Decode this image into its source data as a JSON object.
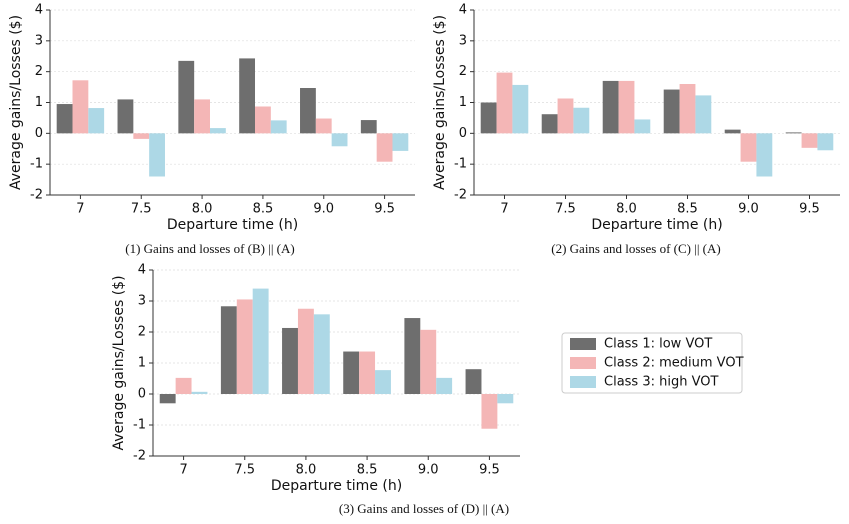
{
  "chart_data": [
    {
      "type": "bar",
      "caption": "(1) Gains and losses of (B) || (A)",
      "xlabel": "Departure time (h)",
      "ylabel": "Average gains/Losses ($)",
      "categories": [
        "7",
        "7.5",
        "8.0",
        "8.5",
        "9.0",
        "9.5"
      ],
      "series": [
        {
          "color": "#6e6e6e",
          "values": [
            0.95,
            1.1,
            2.35,
            2.43,
            1.47,
            0.43
          ]
        },
        {
          "color": "#f4b6b6",
          "values": [
            1.72,
            -0.18,
            1.1,
            0.87,
            0.48,
            -0.92
          ]
        },
        {
          "color": "#add8e6",
          "values": [
            0.82,
            -1.4,
            0.17,
            0.42,
            -0.42,
            -0.57
          ]
        }
      ],
      "ylim": [
        -2,
        4
      ],
      "yticks": [
        -2,
        -1,
        0,
        1,
        2,
        3,
        4
      ],
      "grid": true
    },
    {
      "type": "bar",
      "caption": "(2) Gains and losses of (C) || (A)",
      "xlabel": "Departure time (h)",
      "ylabel": "Average gains/Losses ($)",
      "categories": [
        "7",
        "7.5",
        "8.0",
        "8.5",
        "9.0",
        "9.5"
      ],
      "series": [
        {
          "color": "#6e6e6e",
          "values": [
            1.0,
            0.62,
            1.7,
            1.42,
            0.12,
            0.03
          ]
        },
        {
          "color": "#f4b6b6",
          "values": [
            1.97,
            1.13,
            1.7,
            1.6,
            -0.92,
            -0.47
          ]
        },
        {
          "color": "#add8e6",
          "values": [
            1.57,
            0.83,
            0.45,
            1.23,
            -1.4,
            -0.55
          ]
        }
      ],
      "ylim": [
        -2,
        4
      ],
      "yticks": [
        -2,
        -1,
        0,
        1,
        2,
        3,
        4
      ],
      "grid": true
    },
    {
      "type": "bar",
      "caption": "(3) Gains and losses of (D) || (A)",
      "xlabel": "Departure time (h)",
      "ylabel": "Average gains/Losses ($)",
      "categories": [
        "7",
        "7.5",
        "8.0",
        "8.5",
        "9.0",
        "9.5"
      ],
      "series": [
        {
          "name": "Class 1: low VOT",
          "color": "#6e6e6e",
          "values": [
            -0.3,
            2.83,
            2.13,
            1.37,
            2.45,
            0.8
          ]
        },
        {
          "name": "Class 2: medium VOT",
          "color": "#f4b6b6",
          "values": [
            0.52,
            3.05,
            2.75,
            1.37,
            2.07,
            -1.12
          ]
        },
        {
          "name": "Class 3: high VOT",
          "color": "#add8e6",
          "values": [
            0.07,
            3.4,
            2.57,
            0.77,
            0.52,
            -0.3
          ]
        }
      ],
      "ylim": [
        -2,
        4
      ],
      "yticks": [
        -2,
        -1,
        0,
        1,
        2,
        3,
        4
      ],
      "grid": true
    }
  ]
}
